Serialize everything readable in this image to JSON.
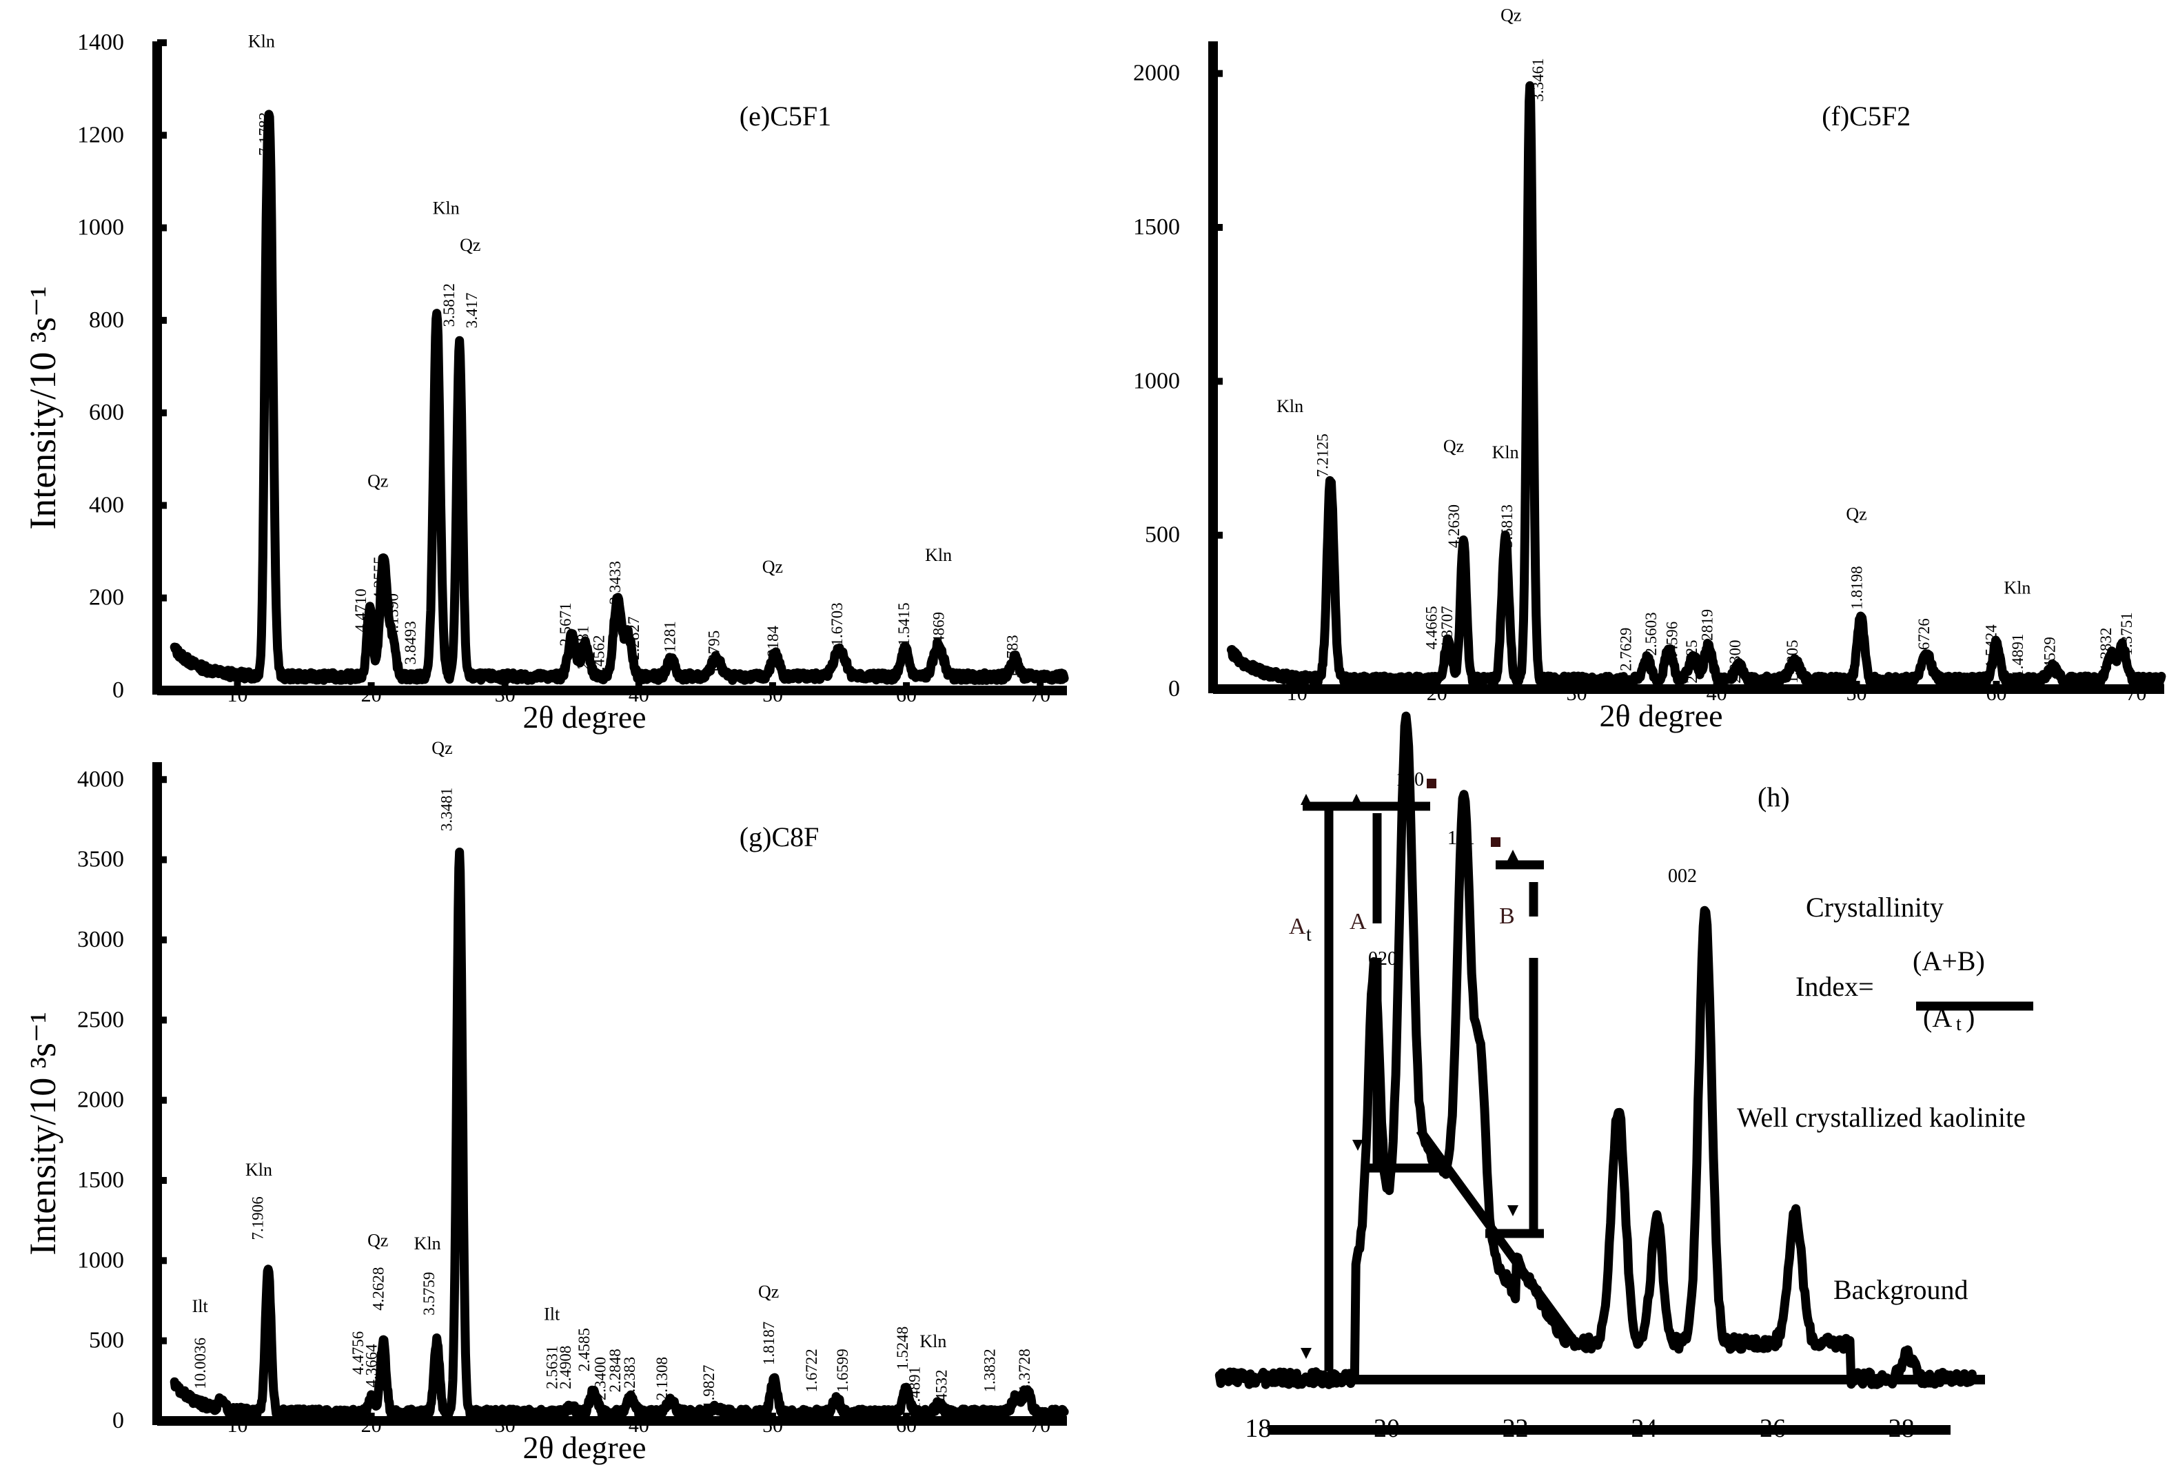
{
  "chart_data": [
    {
      "id": "e",
      "type": "line",
      "title": "(e)C5F1",
      "xlabel": "2θ degree",
      "ylabel": "Intensity/10 ³s⁻¹",
      "xlim": [
        4,
        72
      ],
      "ylim": [
        0,
        1400
      ],
      "yticks": [
        0,
        200,
        400,
        600,
        800,
        1000,
        1200,
        1400
      ],
      "xticks": [
        10,
        20,
        30,
        40,
        50,
        60,
        70
      ],
      "baseline": 30,
      "peaks": [
        {
          "x": 12.4,
          "y": 1180,
          "w": 0.35
        },
        {
          "x": 12.1,
          "y": 300,
          "w": 0.2
        },
        {
          "x": 19.9,
          "y": 150,
          "w": 0.3
        },
        {
          "x": 20.9,
          "y": 250,
          "w": 0.35
        },
        {
          "x": 21.5,
          "y": 90,
          "w": 0.4
        },
        {
          "x": 24.9,
          "y": 790,
          "w": 0.35
        },
        {
          "x": 26.6,
          "y": 720,
          "w": 0.3
        },
        {
          "x": 35.0,
          "y": 90,
          "w": 0.4
        },
        {
          "x": 36.0,
          "y": 70,
          "w": 0.4
        },
        {
          "x": 38.4,
          "y": 170,
          "w": 0.4
        },
        {
          "x": 39.2,
          "y": 90,
          "w": 0.4
        },
        {
          "x": 42.4,
          "y": 40,
          "w": 0.4
        },
        {
          "x": 45.8,
          "y": 40,
          "w": 0.5
        },
        {
          "x": 50.2,
          "y": 50,
          "w": 0.4
        },
        {
          "x": 55.0,
          "y": 60,
          "w": 0.6
        },
        {
          "x": 59.9,
          "y": 60,
          "w": 0.4
        },
        {
          "x": 62.4,
          "y": 70,
          "w": 0.5
        },
        {
          "x": 68.1,
          "y": 40,
          "w": 0.4
        }
      ],
      "labels": [
        {
          "text": "Kln",
          "kind": "mineral",
          "x": 11.8,
          "y": 1390
        },
        {
          "text": "7.1783",
          "kind": "d",
          "x": 12.0,
          "y": 1250
        },
        {
          "text": "Kln",
          "kind": "mineral",
          "x": 25.6,
          "y": 1030
        },
        {
          "text": "3.5812",
          "kind": "d",
          "x": 25.8,
          "y": 880
        },
        {
          "text": "Qz",
          "kind": "mineral",
          "x": 27.4,
          "y": 950
        },
        {
          "text": "3.417",
          "kind": "d",
          "x": 27.5,
          "y": 860
        },
        {
          "text": "Qz",
          "kind": "mineral",
          "x": 20.5,
          "y": 440
        },
        {
          "text": "4.2555",
          "kind": "d",
          "x": 20.6,
          "y": 290
        },
        {
          "text": "4.4710",
          "kind": "d",
          "x": 19.2,
          "y": 220
        },
        {
          "text": "4.1390",
          "kind": "d",
          "x": 21.6,
          "y": 210
        },
        {
          "text": "3.8493",
          "kind": "d",
          "x": 22.9,
          "y": 150
        },
        {
          "text": "2.5671",
          "kind": "d",
          "x": 34.5,
          "y": 190
        },
        {
          "text": "2.4981",
          "kind": "d",
          "x": 35.8,
          "y": 140
        },
        {
          "text": "2.4562",
          "kind": "d",
          "x": 37.0,
          "y": 120
        },
        {
          "text": "2.3433",
          "kind": "d",
          "x": 38.2,
          "y": 280
        },
        {
          "text": "2.2827",
          "kind": "d",
          "x": 39.6,
          "y": 160
        },
        {
          "text": "2.1281",
          "kind": "d",
          "x": 42.3,
          "y": 150
        },
        {
          "text": "1.9795",
          "kind": "d",
          "x": 45.6,
          "y": 130
        },
        {
          "text": "Qz",
          "kind": "mineral",
          "x": 50.0,
          "y": 255
        },
        {
          "text": "1.8184",
          "kind": "d",
          "x": 50.0,
          "y": 140
        },
        {
          "text": "1.6703",
          "kind": "d",
          "x": 54.8,
          "y": 190
        },
        {
          "text": "1.5415",
          "kind": "d",
          "x": 59.8,
          "y": 190
        },
        {
          "text": "Kln",
          "kind": "mineral",
          "x": 62.4,
          "y": 280
        },
        {
          "text": "1.4869",
          "kind": "d",
          "x": 62.4,
          "y": 170
        },
        {
          "text": "1.3783",
          "kind": "d",
          "x": 67.9,
          "y": 120
        }
      ]
    },
    {
      "id": "f",
      "type": "line",
      "title": "(f)C5F2",
      "xlabel": "2θ degree",
      "ylabel": "",
      "xlim": [
        4,
        72
      ],
      "ylim": [
        0,
        2100
      ],
      "yticks": [
        0,
        500,
        1000,
        1500,
        2000
      ],
      "xticks": [
        10,
        20,
        30,
        40,
        50,
        60,
        70
      ],
      "baseline": 30,
      "peaks": [
        {
          "x": 12.4,
          "y": 650,
          "w": 0.35
        },
        {
          "x": 20.8,
          "y": 130,
          "w": 0.35
        },
        {
          "x": 21.9,
          "y": 450,
          "w": 0.3
        },
        {
          "x": 24.9,
          "y": 470,
          "w": 0.35
        },
        {
          "x": 26.65,
          "y": 1940,
          "w": 0.3
        },
        {
          "x": 35.0,
          "y": 70,
          "w": 0.4
        },
        {
          "x": 36.6,
          "y": 100,
          "w": 0.4
        },
        {
          "x": 38.3,
          "y": 80,
          "w": 0.4
        },
        {
          "x": 39.4,
          "y": 110,
          "w": 0.4
        },
        {
          "x": 41.6,
          "y": 50,
          "w": 0.4
        },
        {
          "x": 45.6,
          "y": 60,
          "w": 0.5
        },
        {
          "x": 50.3,
          "y": 210,
          "w": 0.35
        },
        {
          "x": 55.0,
          "y": 80,
          "w": 0.5
        },
        {
          "x": 60.0,
          "y": 120,
          "w": 0.35
        },
        {
          "x": 64.0,
          "y": 40,
          "w": 0.5
        },
        {
          "x": 68.2,
          "y": 80,
          "w": 0.4
        },
        {
          "x": 69.0,
          "y": 110,
          "w": 0.4
        }
      ],
      "labels": [
        {
          "text": "Qz",
          "kind": "mineral",
          "x": 25.3,
          "y": 2170
        },
        {
          "text": "3.3461",
          "kind": "d",
          "x": 27.2,
          "y": 2050
        },
        {
          "text": "Kln",
          "kind": "mineral",
          "x": 9.5,
          "y": 900
        },
        {
          "text": "7.2125",
          "kind": "d",
          "x": 11.8,
          "y": 830
        },
        {
          "text": "Qz",
          "kind": "mineral",
          "x": 21.2,
          "y": 770
        },
        {
          "text": "4.2630",
          "kind": "d",
          "x": 21.2,
          "y": 600
        },
        {
          "text": "Kln",
          "kind": "mineral",
          "x": 24.9,
          "y": 750
        },
        {
          "text": "3.5813",
          "kind": "d",
          "x": 25.0,
          "y": 600
        },
        {
          "text": "4.4665",
          "kind": "d",
          "x": 19.6,
          "y": 270
        },
        {
          "text": "4.3707",
          "kind": "d",
          "x": 20.7,
          "y": 270
        },
        {
          "text": "2.7629",
          "kind": "d",
          "x": 33.5,
          "y": 200
        },
        {
          "text": "2.5603",
          "kind": "d",
          "x": 35.3,
          "y": 250
        },
        {
          "text": "2.4596",
          "kind": "d",
          "x": 36.8,
          "y": 220
        },
        {
          "text": "2.3425",
          "kind": "d",
          "x": 38.2,
          "y": 160
        },
        {
          "text": "2.2819",
          "kind": "d",
          "x": 39.3,
          "y": 260
        },
        {
          "text": "2.2300",
          "kind": "d",
          "x": 41.3,
          "y": 160
        },
        {
          "text": "1.9805",
          "kind": "d",
          "x": 45.4,
          "y": 160
        },
        {
          "text": "Qz",
          "kind": "mineral",
          "x": 50.0,
          "y": 550
        },
        {
          "text": "1.8198",
          "kind": "d",
          "x": 50.0,
          "y": 400
        },
        {
          "text": "1.6726",
          "kind": "d",
          "x": 54.8,
          "y": 230
        },
        {
          "text": "1.5424",
          "kind": "d",
          "x": 59.6,
          "y": 210
        },
        {
          "text": "Kln",
          "kind": "mineral",
          "x": 61.5,
          "y": 310
        },
        {
          "text": "1.4891",
          "kind": "d",
          "x": 61.5,
          "y": 180
        },
        {
          "text": "1.4529",
          "kind": "d",
          "x": 63.8,
          "y": 170
        },
        {
          "text": "1.3832",
          "kind": "d",
          "x": 67.8,
          "y": 200
        },
        {
          "text": "1.3751",
          "kind": "d",
          "x": 69.3,
          "y": 250
        }
      ]
    },
    {
      "id": "g",
      "type": "line",
      "title": "(g)C8F",
      "xlabel": "2θ degree",
      "ylabel": "Intensity/10 ³s⁻¹",
      "xlim": [
        4,
        72
      ],
      "ylim": [
        0,
        4100
      ],
      "yticks": [
        0,
        500,
        1000,
        1500,
        2000,
        2500,
        3000,
        3500,
        4000
      ],
      "xticks": [
        10,
        20,
        30,
        40,
        50,
        60,
        70
      ],
      "baseline": 50,
      "peaks": [
        {
          "x": 8.8,
          "y": 60,
          "w": 0.3
        },
        {
          "x": 12.3,
          "y": 900,
          "w": 0.3
        },
        {
          "x": 20.0,
          "y": 100,
          "w": 0.3
        },
        {
          "x": 20.9,
          "y": 450,
          "w": 0.3
        },
        {
          "x": 24.9,
          "y": 450,
          "w": 0.3
        },
        {
          "x": 26.6,
          "y": 3500,
          "w": 0.3
        },
        {
          "x": 35.0,
          "y": 40,
          "w": 0.4
        },
        {
          "x": 36.6,
          "y": 130,
          "w": 0.4
        },
        {
          "x": 39.4,
          "y": 90,
          "w": 0.4
        },
        {
          "x": 42.4,
          "y": 80,
          "w": 0.4
        },
        {
          "x": 45.7,
          "y": 40,
          "w": 0.5
        },
        {
          "x": 50.1,
          "y": 200,
          "w": 0.35
        },
        {
          "x": 54.8,
          "y": 80,
          "w": 0.4
        },
        {
          "x": 60.0,
          "y": 160,
          "w": 0.35
        },
        {
          "x": 62.4,
          "y": 50,
          "w": 0.4
        },
        {
          "x": 68.2,
          "y": 100,
          "w": 0.4
        },
        {
          "x": 69.0,
          "y": 140,
          "w": 0.4
        }
      ],
      "labels": [
        {
          "text": "Qz",
          "kind": "mineral",
          "x": 25.3,
          "y": 4160
        },
        {
          "text": "3.3481",
          "kind": "d",
          "x": 25.6,
          "y": 3950
        },
        {
          "text": "Kln",
          "kind": "mineral",
          "x": 11.6,
          "y": 1530
        },
        {
          "text": "7.1906",
          "kind": "d",
          "x": 11.5,
          "y": 1400
        },
        {
          "text": "Qz",
          "kind": "mineral",
          "x": 20.5,
          "y": 1090
        },
        {
          "text": "4.2628",
          "kind": "d",
          "x": 20.5,
          "y": 960
        },
        {
          "text": "Kln",
          "kind": "mineral",
          "x": 24.2,
          "y": 1070
        },
        {
          "text": "3.5759",
          "kind": "d",
          "x": 24.3,
          "y": 930
        },
        {
          "text": "4.4756",
          "kind": "d",
          "x": 19.0,
          "y": 560
        },
        {
          "text": "4.3664",
          "kind": "d",
          "x": 20.0,
          "y": 480
        },
        {
          "text": "Ilt",
          "kind": "mineral",
          "x": 7.2,
          "y": 680
        },
        {
          "text": "10.0036",
          "kind": "d",
          "x": 7.2,
          "y": 520
        },
        {
          "text": "Ilt",
          "kind": "mineral",
          "x": 33.5,
          "y": 630
        },
        {
          "text": "2.5631",
          "kind": "d",
          "x": 33.5,
          "y": 470
        },
        {
          "text": "2.4908",
          "kind": "d",
          "x": 34.5,
          "y": 470
        },
        {
          "text": "2.4585",
          "kind": "d",
          "x": 35.9,
          "y": 580
        },
        {
          "text": "2.3400",
          "kind": "d",
          "x": 37.1,
          "y": 400
        },
        {
          "text": "2.2848",
          "kind": "d",
          "x": 38.2,
          "y": 450
        },
        {
          "text": "2.2383",
          "kind": "d",
          "x": 39.3,
          "y": 400
        },
        {
          "text": "2.1308",
          "kind": "d",
          "x": 41.7,
          "y": 400
        },
        {
          "text": "1.9827",
          "kind": "d",
          "x": 45.2,
          "y": 350
        },
        {
          "text": "Qz",
          "kind": "mineral",
          "x": 49.7,
          "y": 770
        },
        {
          "text": "1.8187",
          "kind": "d",
          "x": 49.7,
          "y": 620
        },
        {
          "text": "1.6722",
          "kind": "d",
          "x": 52.9,
          "y": 450
        },
        {
          "text": "1.6599",
          "kind": "d",
          "x": 55.2,
          "y": 450
        },
        {
          "text": "1.5248",
          "kind": "d",
          "x": 59.7,
          "y": 590
        },
        {
          "text": "Kln",
          "kind": "mineral",
          "x": 62.0,
          "y": 460
        },
        {
          "text": "1.4891",
          "kind": "d",
          "x": 60.6,
          "y": 340
        },
        {
          "text": "1.4532",
          "kind": "d",
          "x": 62.6,
          "y": 320
        },
        {
          "text": "1.3832",
          "kind": "d",
          "x": 66.2,
          "y": 450
        },
        {
          "text": "1.3728",
          "kind": "d",
          "x": 68.8,
          "y": 450
        }
      ]
    },
    {
      "id": "h",
      "type": "line",
      "title": "(h)",
      "xlabel": "",
      "ylabel": "",
      "xlim": [
        17.3,
        29.3
      ],
      "ylim": [
        0,
        100
      ],
      "xticks": [
        18,
        20,
        22,
        24,
        26,
        28
      ],
      "peaks": [
        {
          "x": 19.8,
          "y": 45,
          "w": 0.12
        },
        {
          "x": 20.3,
          "y": 78,
          "w": 0.14
        },
        {
          "x": 21.2,
          "y": 70,
          "w": 0.14
        },
        {
          "x": 21.45,
          "y": 30,
          "w": 0.12
        },
        {
          "x": 23.6,
          "y": 40,
          "w": 0.15
        },
        {
          "x": 24.2,
          "y": 21,
          "w": 0.13
        },
        {
          "x": 24.95,
          "y": 75,
          "w": 0.14
        },
        {
          "x": 26.35,
          "y": 22,
          "w": 0.15
        },
        {
          "x": 28.1,
          "y": 4,
          "w": 0.12
        }
      ],
      "reflections": [
        "110",
        "111",
        "002",
        "020"
      ],
      "labels_text": {
        "at": "A",
        "at_sub": "t",
        "a": "A",
        "b": "B",
        "crystallinity": "Crystallinity",
        "index": "Index=",
        "numerator": "(A+B)",
        "denominator": "(A",
        "denominator_sub": "t",
        "denominator_close": ")",
        "well": "Well crystallized kaolinite",
        "background": "Background"
      }
    }
  ]
}
